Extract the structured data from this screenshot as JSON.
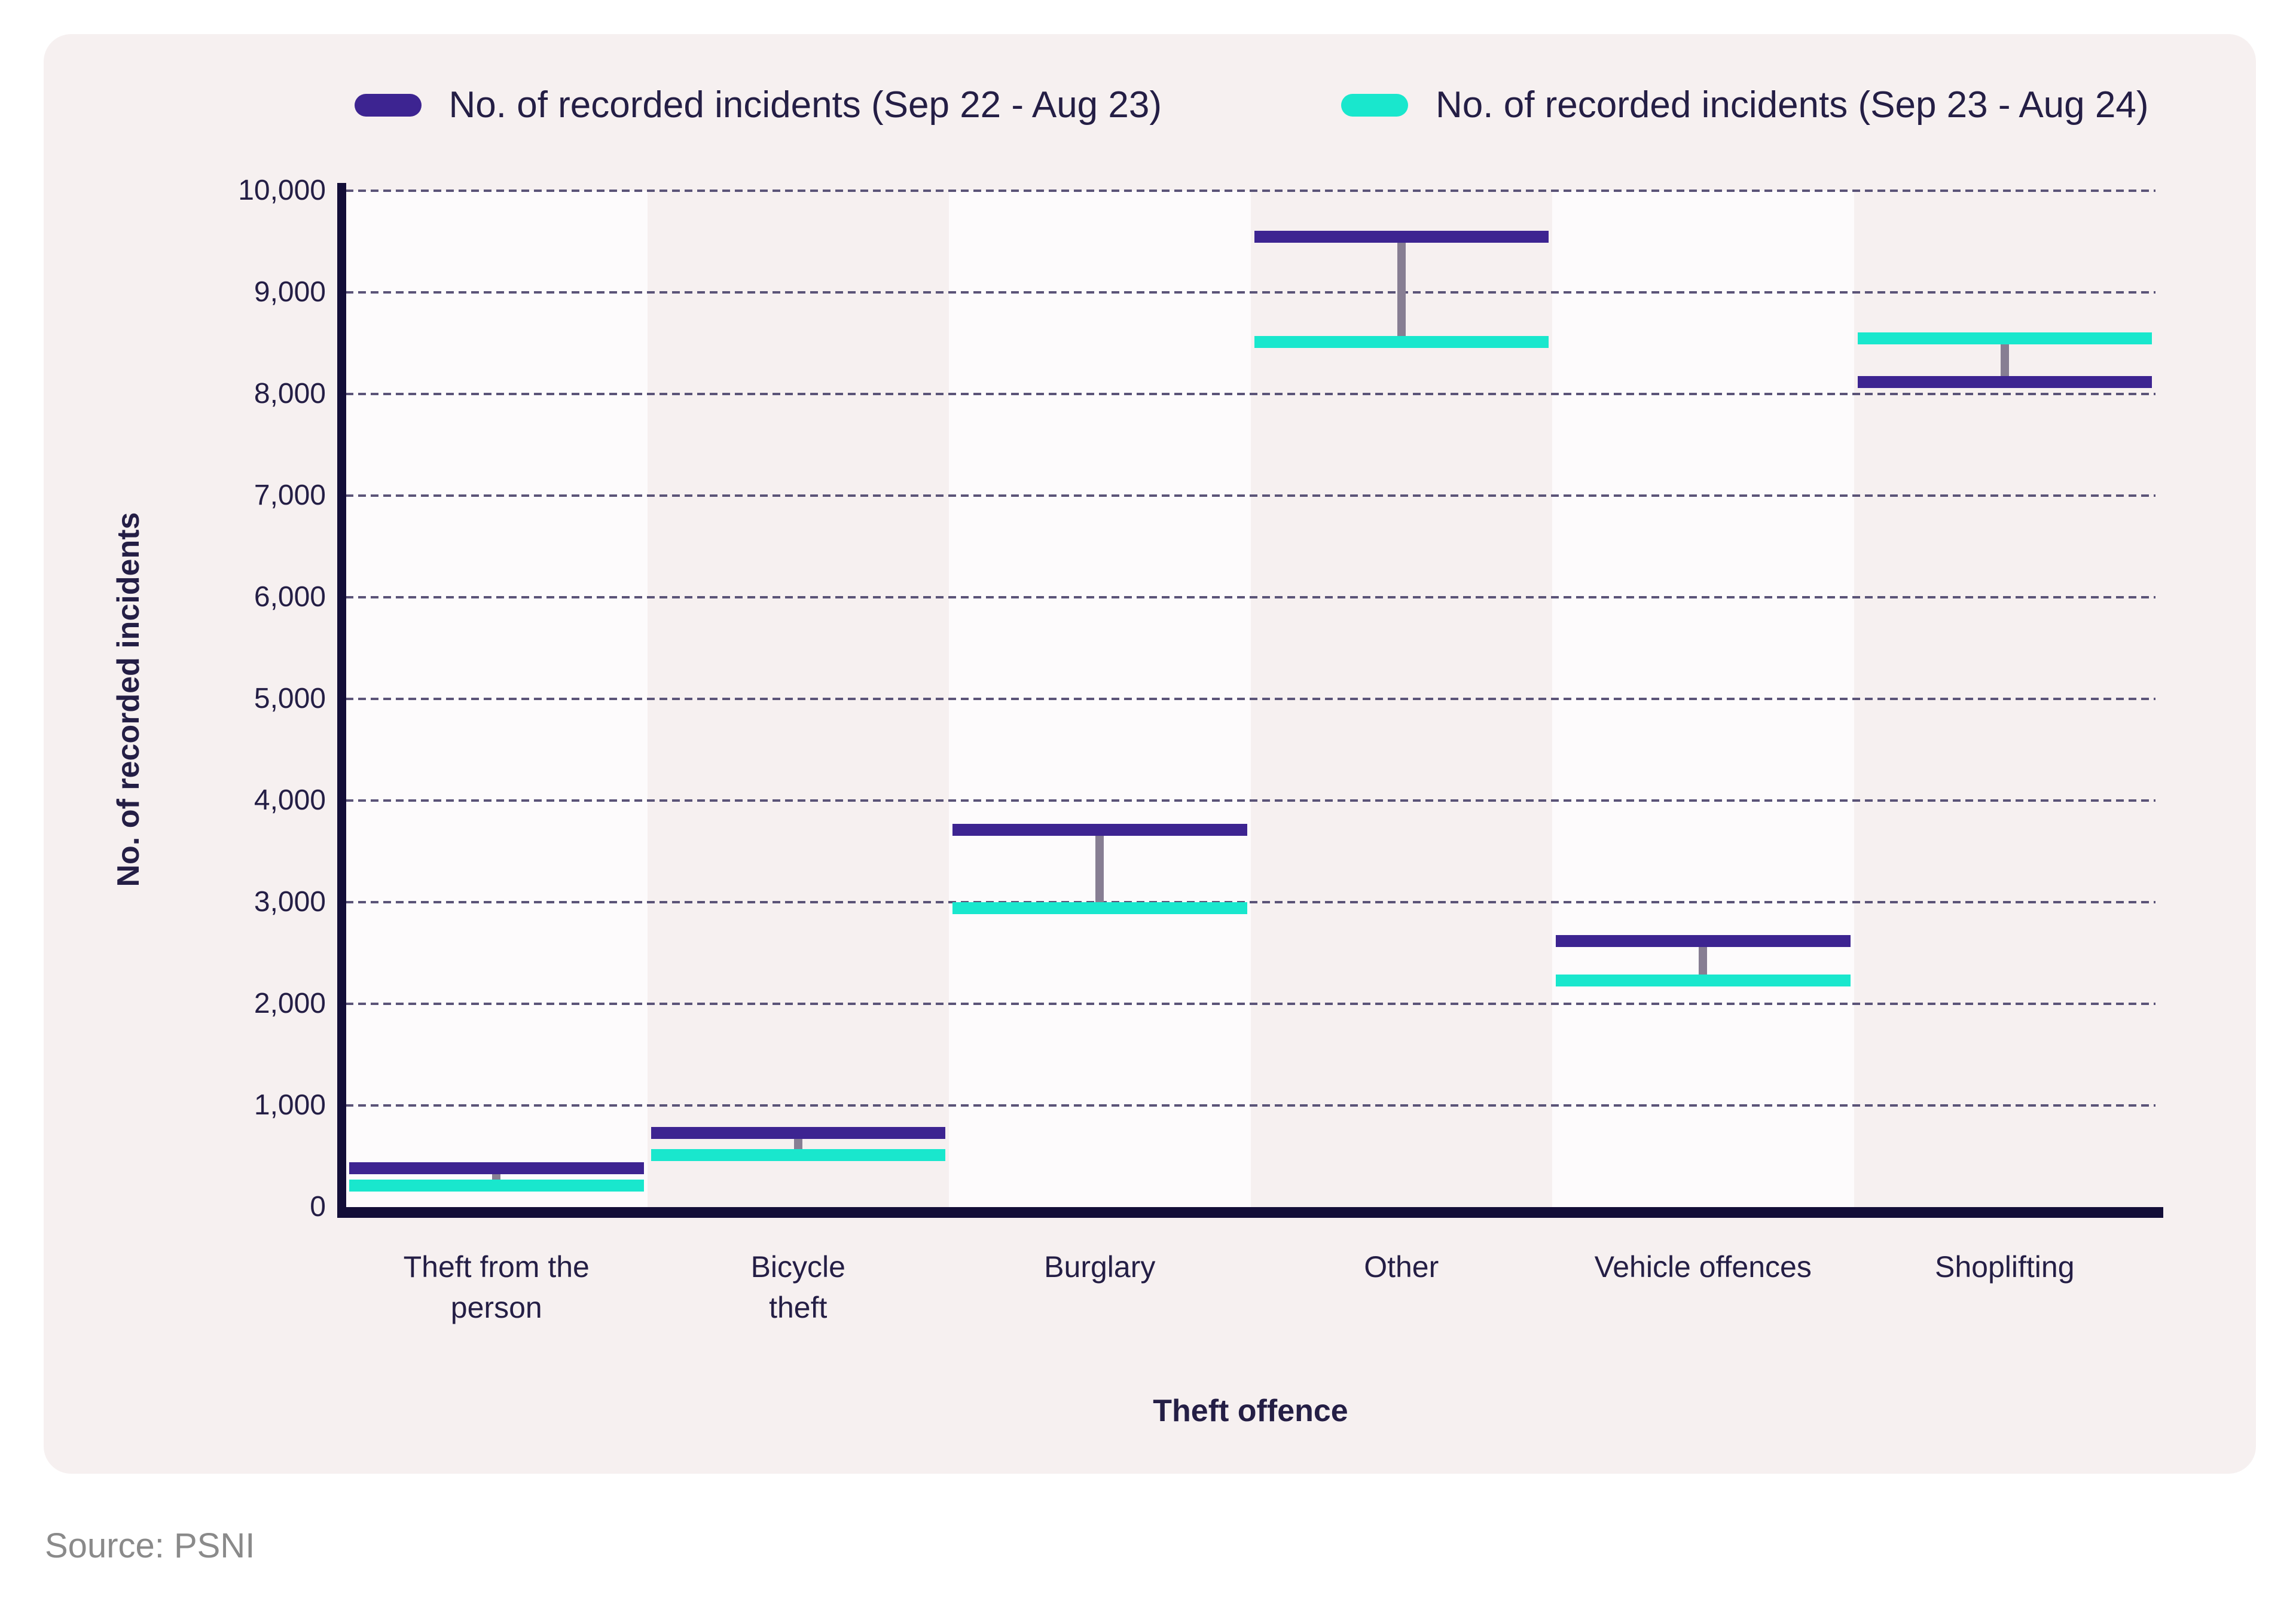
{
  "legend": {
    "items": [
      {
        "label": "No. of recorded incidents (Sep 22 - Aug 23)",
        "color": "#3d2491"
      },
      {
        "label": "No. of recorded incidents (Sep 23 - Aug 24)",
        "color": "#19e7cd"
      }
    ]
  },
  "y_axis": {
    "title": "No. of recorded incidents",
    "ticks": [
      "0",
      "1,000",
      "2,000",
      "3,000",
      "4,000",
      "5,000",
      "6,000",
      "7,000",
      "8,000",
      "9,000",
      "10,000"
    ]
  },
  "x_axis": {
    "title": "Theft offence"
  },
  "source": "Source: PSNI",
  "chart_data": {
    "type": "dumbbell",
    "title": "",
    "categories": [
      "Theft from the person",
      "Bicycle theft",
      "Burglary",
      "Other",
      "Vehicle offences",
      "Shoplifting"
    ],
    "category_label_lines": [
      [
        "Theft from the",
        "person"
      ],
      [
        "Bicycle",
        "theft"
      ],
      [
        "Burglary"
      ],
      [
        "Other"
      ],
      [
        "Vehicle offences"
      ],
      [
        "Shoplifting"
      ]
    ],
    "series": [
      {
        "name": "No. of recorded incidents (Sep 22 - Aug 23)",
        "color": "#3d2491",
        "values": [
          380,
          730,
          3710,
          9550,
          2620,
          8120
        ]
      },
      {
        "name": "No. of recorded incidents (Sep 23 - Aug 24)",
        "color": "#19e7cd",
        "values": [
          210,
          510,
          2940,
          8510,
          2230,
          8550
        ]
      }
    ],
    "xlabel": "Theft offence",
    "ylabel": "No. of recorded incidents",
    "ylim": [
      0,
      10000
    ],
    "y_tick_step": 1000,
    "grid": "horizontal-dashed",
    "legend_position": "top",
    "connector_color": "#877e93",
    "band_colors": [
      "#fdfbfc",
      "#f6f0f0"
    ]
  },
  "colors": {
    "page_background": "#ffffff",
    "card_background": "#f6f0f0",
    "axis": "#130e38",
    "text": "#241e45",
    "gridline": "#5b5478",
    "source_text": "#8a8a8a"
  }
}
